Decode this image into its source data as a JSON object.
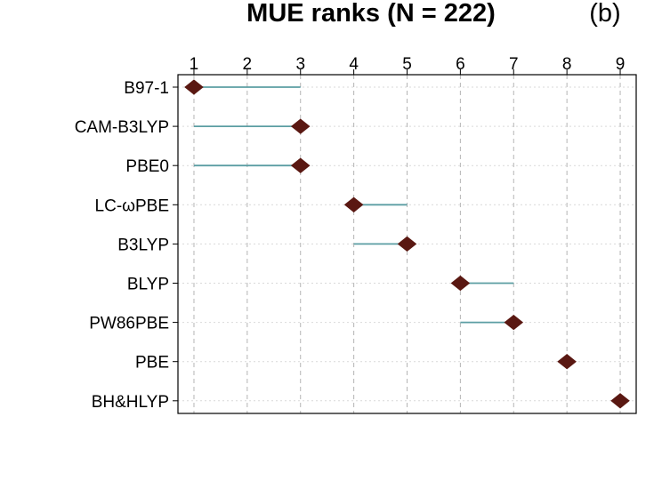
{
  "chart_data": {
    "type": "dot-range",
    "title": "MUE ranks (N = 222)",
    "panel_label": "(b)",
    "x_ticks": [
      1,
      2,
      3,
      4,
      5,
      6,
      7,
      8,
      9
    ],
    "xlim": [
      0.7,
      9.3
    ],
    "grid": true,
    "colors": {
      "point": "#5a1812",
      "range": "#5b9ea3",
      "grid": "#b5b5b5",
      "row_grid": "#d9d9d9"
    },
    "series": [
      {
        "name": "B97-1",
        "rank": 1,
        "range": [
          1,
          3
        ]
      },
      {
        "name": "CAM-B3LYP",
        "rank": 3,
        "range": [
          1,
          3
        ]
      },
      {
        "name": "PBE0",
        "rank": 3,
        "range": [
          1,
          3
        ]
      },
      {
        "name": "LC-ωPBE",
        "rank": 4,
        "range": [
          4,
          5
        ]
      },
      {
        "name": "B3LYP",
        "rank": 5,
        "range": [
          4,
          5
        ]
      },
      {
        "name": "BLYP",
        "rank": 6,
        "range": [
          6,
          7
        ]
      },
      {
        "name": "PW86PBE",
        "rank": 7,
        "range": [
          6,
          7
        ]
      },
      {
        "name": "PBE",
        "rank": 8,
        "range": [
          8,
          8
        ]
      },
      {
        "name": "BH&HLYP",
        "rank": 9,
        "range": [
          9,
          9
        ]
      }
    ]
  }
}
